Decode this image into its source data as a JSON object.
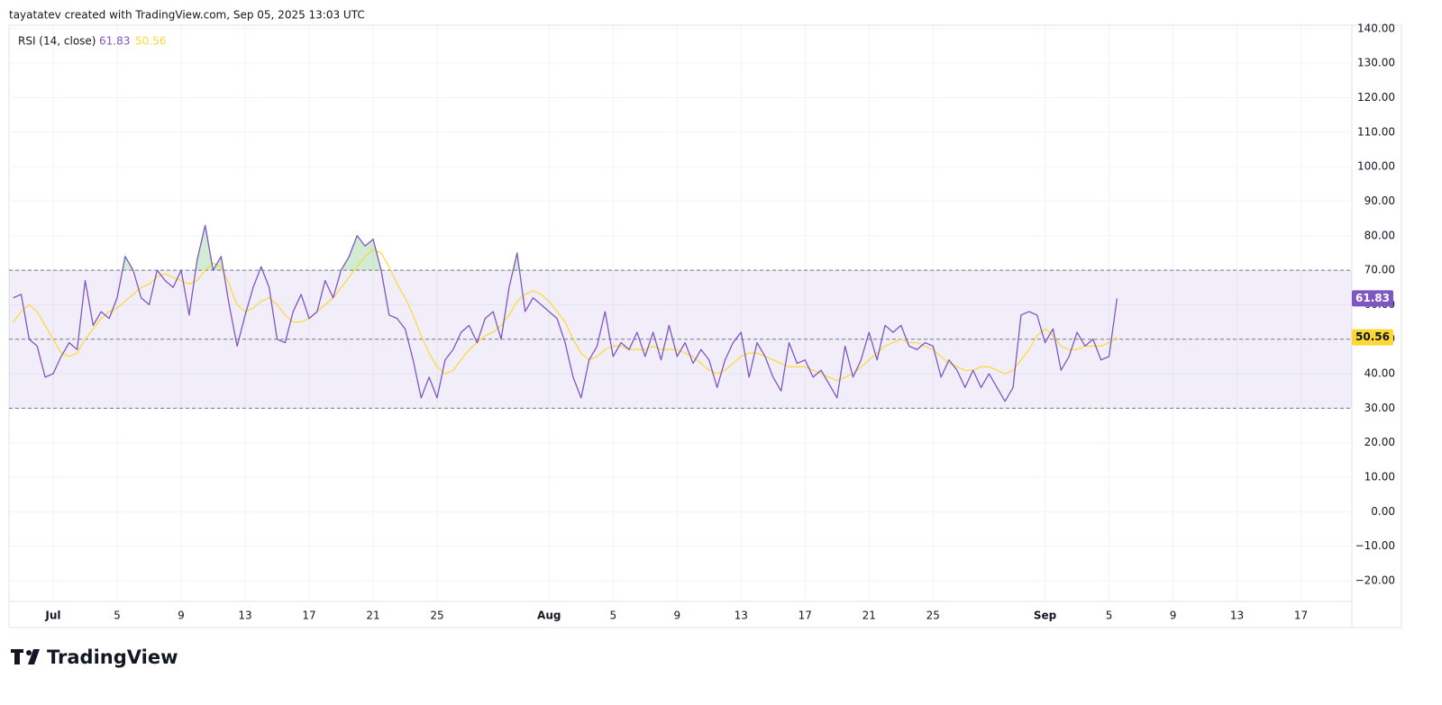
{
  "header": {
    "attribution": "tayatatev created with TradingView.com, Sep 05, 2025 13:03 UTC"
  },
  "footer": {
    "brand": "TradingView"
  },
  "chart_data": {
    "type": "line",
    "title": "RSI (14, close)",
    "x": [
      -2.5,
      -2,
      -1.5,
      -1,
      -0.5,
      0,
      0.5,
      1,
      1.5,
      2,
      2.5,
      3,
      3.5,
      4,
      4.5,
      5,
      5.5,
      6,
      6.5,
      7,
      7.5,
      8,
      8.5,
      9,
      9.5,
      10,
      10.5,
      11,
      11.5,
      12,
      12.5,
      13,
      13.5,
      14,
      14.5,
      15,
      15.5,
      16,
      16.5,
      17,
      17.5,
      18,
      18.5,
      19,
      19.5,
      20,
      20.5,
      21,
      21.5,
      22,
      22.5,
      23,
      23.5,
      24,
      24.5,
      25,
      25.5,
      26,
      26.5,
      27,
      27.5,
      28,
      28.5,
      29,
      29.5,
      30,
      30.5,
      31,
      31.5,
      32,
      32.5,
      33,
      33.5,
      34,
      34.5,
      35,
      35.5,
      36,
      36.5,
      37,
      37.5,
      38,
      38.5,
      39,
      39.5,
      40,
      40.5,
      41,
      41.5,
      42,
      42.5,
      43,
      43.5,
      44,
      44.5,
      45,
      45.5,
      46,
      46.5,
      47,
      47.5,
      48,
      48.5,
      49,
      49.5,
      50,
      50.5,
      51,
      51.5,
      52,
      52.5,
      53,
      53.5,
      54,
      54.5,
      55,
      55.5,
      56,
      56.5,
      57,
      57.5,
      58,
      58.5,
      59,
      59.5,
      60,
      60.5,
      61,
      61.5,
      62,
      62.5,
      63,
      63.5,
      64,
      64.5,
      65,
      65.5,
      66,
      66.5
    ],
    "series": [
      {
        "color": "#7e57c2",
        "values": [
          62,
          63,
          50,
          48,
          39,
          40,
          45,
          49,
          47,
          67,
          54,
          58,
          56,
          62,
          74,
          70,
          62,
          60,
          70,
          67,
          65,
          70,
          57,
          73,
          83,
          70,
          74,
          60,
          48,
          57,
          65,
          71,
          65,
          50,
          49,
          58,
          63,
          56,
          58,
          67,
          62,
          70,
          74,
          80,
          77,
          79,
          70,
          57,
          56,
          53,
          44,
          33,
          39,
          33,
          44,
          47,
          52,
          54,
          49,
          56,
          58,
          50,
          65,
          75,
          58,
          62,
          60,
          58,
          56,
          49,
          39,
          33,
          44,
          48,
          58,
          45,
          49,
          47,
          52,
          45,
          52,
          44,
          54,
          45,
          49,
          43,
          47,
          44,
          36,
          44,
          49,
          52,
          39,
          49,
          45,
          39,
          35,
          49,
          43,
          44,
          39,
          41,
          37,
          33,
          48,
          39,
          44,
          52,
          44,
          54,
          52,
          54,
          48,
          47,
          49,
          48,
          39,
          44,
          41,
          36,
          41,
          36,
          40,
          36,
          32,
          36,
          57,
          58,
          57,
          49,
          53,
          41,
          45,
          52,
          48,
          50,
          44,
          45,
          61.83
        ]
      },
      {
        "color": "#fdd835",
        "values": [
          55,
          58,
          60,
          58,
          54,
          50,
          46,
          45,
          46,
          50,
          53,
          56,
          58,
          59,
          61,
          63,
          65,
          66,
          68,
          69,
          68,
          67,
          66,
          67,
          70,
          72,
          71,
          66,
          60,
          58,
          59,
          61,
          62,
          60,
          57,
          55,
          55,
          56,
          58,
          60,
          62,
          65,
          68,
          71,
          74,
          76,
          75,
          71,
          66,
          62,
          57,
          51,
          46,
          42,
          40,
          41,
          44,
          47,
          49,
          51,
          52,
          54,
          57,
          61,
          63,
          64,
          63,
          61,
          58,
          55,
          50,
          46,
          44,
          45,
          47,
          48,
          48,
          47,
          47,
          47,
          48,
          47,
          47,
          47,
          46,
          45,
          43,
          41,
          40,
          41,
          43,
          45,
          46,
          46,
          45,
          44,
          43,
          42,
          42,
          42,
          41,
          40,
          39,
          38,
          39,
          40,
          42,
          44,
          46,
          48,
          49,
          50,
          49,
          49,
          48,
          47,
          45,
          43,
          42,
          41,
          41,
          42,
          42,
          41,
          40,
          41,
          44,
          47,
          51,
          53,
          51,
          48,
          47,
          47,
          48,
          48,
          48,
          49,
          50.56
        ]
      }
    ],
    "upper_band": 70,
    "middle_band": 50,
    "lower_band": 30,
    "band_color": "#7e57c2",
    "overbought_color": "#4caf50",
    "xlim": [
      -2.76,
      81.18
    ],
    "xticks": [
      {
        "value": 0,
        "label": "Jul"
      },
      {
        "value": 4,
        "label": "5"
      },
      {
        "value": 8,
        "label": "9"
      },
      {
        "value": 12,
        "label": "13"
      },
      {
        "value": 16,
        "label": "17"
      },
      {
        "value": 20,
        "label": "21"
      },
      {
        "value": 24,
        "label": "25"
      },
      {
        "value": 31,
        "label": "Aug"
      },
      {
        "value": 35,
        "label": "5"
      },
      {
        "value": 39,
        "label": "9"
      },
      {
        "value": 43,
        "label": "13"
      },
      {
        "value": 47,
        "label": "17"
      },
      {
        "value": 51,
        "label": "21"
      },
      {
        "value": 55,
        "label": "25"
      },
      {
        "value": 62,
        "label": "Sep"
      },
      {
        "value": 66,
        "label": "5"
      },
      {
        "value": 70,
        "label": "9"
      },
      {
        "value": 74,
        "label": "13"
      },
      {
        "value": 78,
        "label": "17"
      }
    ],
    "ylim": [
      -26,
      141
    ],
    "yticks": [
      {
        "value": 140,
        "label": "140.00"
      },
      {
        "value": 130,
        "label": "130.00"
      },
      {
        "value": 120,
        "label": "120.00"
      },
      {
        "value": 110,
        "label": "110.00"
      },
      {
        "value": 100,
        "label": "100.00"
      },
      {
        "value": 90,
        "label": "90.00"
      },
      {
        "value": 80,
        "label": "80.00"
      },
      {
        "value": 70,
        "label": "70.00"
      },
      {
        "value": 60,
        "label": "60.00"
      },
      {
        "value": 50,
        "label": "50.00"
      },
      {
        "value": 40,
        "label": "40.00"
      },
      {
        "value": 30,
        "label": "30.00"
      },
      {
        "value": 20,
        "label": "20.00"
      },
      {
        "value": 10,
        "label": "10.00"
      },
      {
        "value": 0,
        "label": "0.00"
      },
      {
        "value": -10,
        "label": "−10.00"
      },
      {
        "value": -20,
        "label": "−20.00"
      }
    ],
    "grid": true
  }
}
